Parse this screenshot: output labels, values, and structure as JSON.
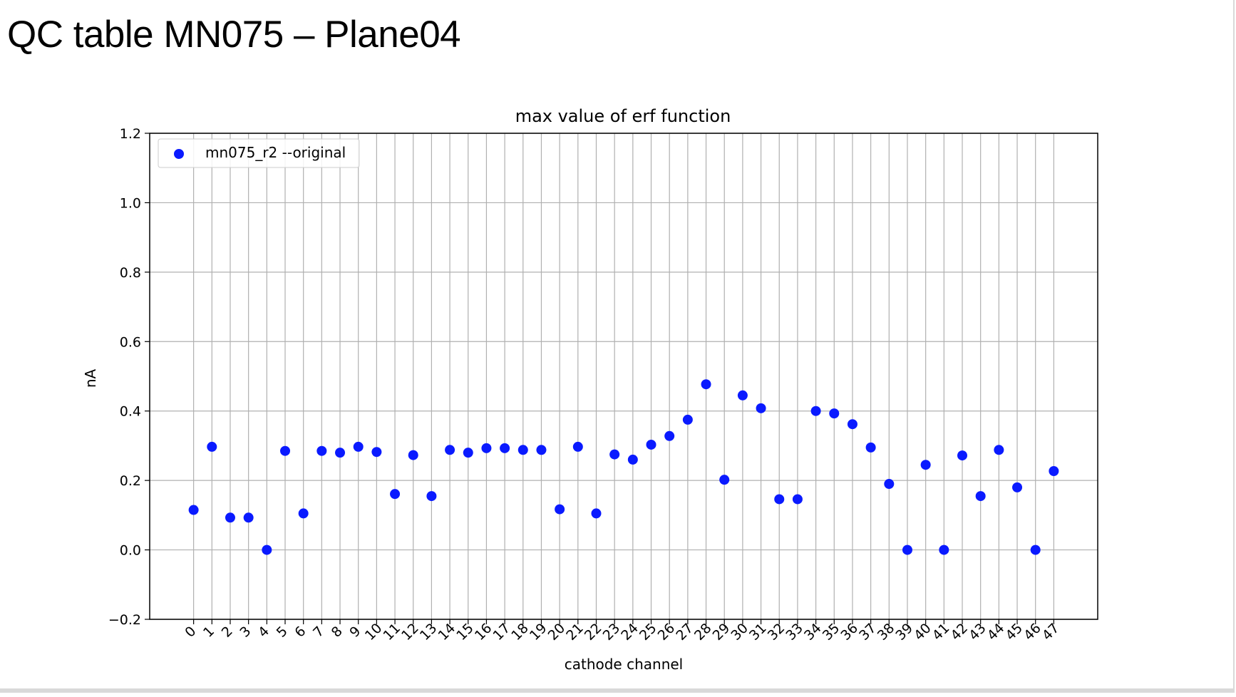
{
  "slide": {
    "title": "QC table MN075 – Plane04"
  },
  "chart_data": {
    "type": "scatter",
    "title": "max value of erf function",
    "xlabel": "cathode channel",
    "ylabel": "nA",
    "xlim": [
      -2.4,
      49.4
    ],
    "ylim": [
      -0.2,
      1.2
    ],
    "grid": true,
    "legend_position": "top-left",
    "x_ticks": [
      0,
      1,
      2,
      3,
      4,
      5,
      6,
      7,
      8,
      9,
      10,
      11,
      12,
      13,
      14,
      15,
      16,
      17,
      18,
      19,
      20,
      21,
      22,
      23,
      24,
      25,
      26,
      27,
      28,
      29,
      30,
      31,
      32,
      33,
      34,
      35,
      36,
      37,
      38,
      39,
      40,
      41,
      42,
      43,
      44,
      45,
      46,
      47
    ],
    "y_ticks": [
      -0.2,
      0.0,
      0.2,
      0.4,
      0.6,
      0.8,
      1.0,
      1.2
    ],
    "y_tick_labels": [
      "−0.2",
      "0.0",
      "0.2",
      "0.4",
      "0.6",
      "0.8",
      "1.0",
      "1.2"
    ],
    "x_tick_rotation": "rotated -45°",
    "series": [
      {
        "name": "mn075_r2 --original",
        "color": "#0a1aff",
        "marker": "circle",
        "x": [
          0,
          1,
          2,
          3,
          4,
          5,
          6,
          7,
          8,
          9,
          10,
          11,
          12,
          13,
          14,
          15,
          16,
          17,
          18,
          19,
          20,
          21,
          22,
          23,
          24,
          25,
          26,
          27,
          28,
          29,
          30,
          31,
          32,
          33,
          34,
          35,
          36,
          37,
          38,
          39,
          40,
          41,
          42,
          43,
          44,
          45,
          46,
          47
        ],
        "values": [
          0.115,
          0.297,
          0.093,
          0.093,
          0.0,
          0.285,
          0.105,
          0.285,
          0.28,
          0.297,
          0.282,
          0.161,
          0.273,
          0.155,
          0.288,
          0.28,
          0.293,
          0.293,
          0.288,
          0.288,
          0.117,
          0.297,
          0.105,
          0.275,
          0.26,
          0.303,
          0.328,
          0.375,
          0.477,
          0.202,
          0.445,
          0.408,
          0.146,
          0.146,
          0.4,
          0.393,
          0.362,
          0.295,
          0.19,
          0.0,
          0.245,
          0.0,
          0.272,
          0.155,
          0.288,
          0.18,
          0.0,
          0.227
        ]
      }
    ]
  }
}
